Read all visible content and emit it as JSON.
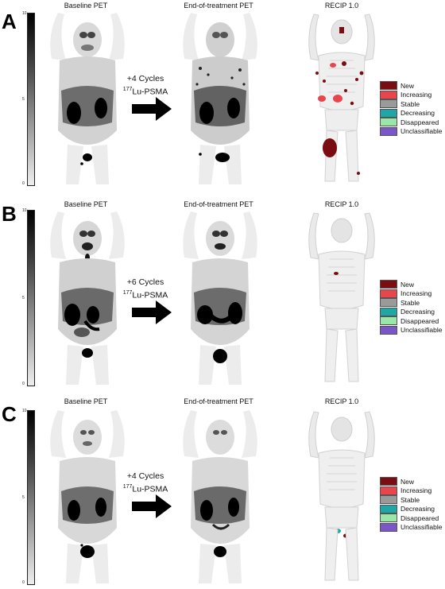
{
  "panels": [
    {
      "letter": "A",
      "titles": {
        "baseline": "Baseline PET",
        "end": "End-of-treatment PET",
        "recip": "RECIP 1.0"
      },
      "arrow": {
        "line1": "+4 Cycles",
        "iso_sup": "177",
        "iso_text": "Lu-PSMA"
      }
    },
    {
      "letter": "B",
      "titles": {
        "baseline": "Baseline PET",
        "end": "End-of-treatment PET",
        "recip": "RECIP 1.0"
      },
      "arrow": {
        "line1": "+6 Cycles",
        "iso_sup": "177",
        "iso_text": "Lu-PSMA"
      }
    },
    {
      "letter": "C",
      "titles": {
        "baseline": "Baseline PET",
        "end": "End-of-treatment PET",
        "recip": "RECIP 1.0"
      },
      "arrow": {
        "line1": "+4 Cycles",
        "iso_sup": "177",
        "iso_text": "Lu-PSMA"
      }
    }
  ],
  "scale_ticks": [
    "10",
    "9",
    "8",
    "7",
    "6",
    "5",
    "4",
    "3",
    "2",
    "1",
    "0"
  ],
  "legend": [
    {
      "label": "New",
      "color": "#7a0d12"
    },
    {
      "label": "Increasing",
      "color": "#e8454c"
    },
    {
      "label": "Stable",
      "color": "#9a9a9a"
    },
    {
      "label": "Decreasing",
      "color": "#1fa7a7"
    },
    {
      "label": "Disappeared",
      "color": "#9be7a9"
    },
    {
      "label": "Unclassifiable",
      "color": "#7a56c8"
    }
  ]
}
